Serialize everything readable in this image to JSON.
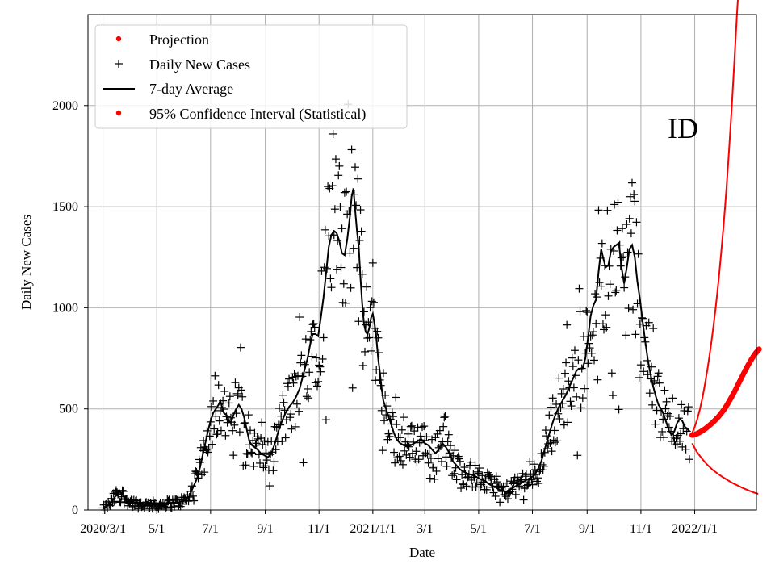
{
  "chart_data": {
    "type": "scatter",
    "title": "",
    "xlabel": "Date",
    "ylabel": "Daily New Cases",
    "x_axis": {
      "start_date": "2020-02-15",
      "end_date": "2022-02-15",
      "ticks": [
        {
          "label": "2020/3/1",
          "day": 15
        },
        {
          "label": "5/1",
          "day": 76
        },
        {
          "label": "7/1",
          "day": 137
        },
        {
          "label": "9/1",
          "day": 199
        },
        {
          "label": "11/1",
          "day": 260
        },
        {
          "label": "2021/1/1",
          "day": 321
        },
        {
          "label": "3/1",
          "day": 380
        },
        {
          "label": "5/1",
          "day": 441
        },
        {
          "label": "7/1",
          "day": 502
        },
        {
          "label": "9/1",
          "day": 564
        },
        {
          "label": "11/1",
          "day": 625
        },
        {
          "label": "2022/1/1",
          "day": 686
        }
      ],
      "xlim": [
        -2,
        756
      ]
    },
    "ylim": [
      0,
      2450
    ],
    "yticks": [
      0,
      500,
      1000,
      1500,
      2000
    ],
    "grid": true,
    "legend": {
      "position": "top-left",
      "entries": [
        {
          "label": "Projection",
          "marker": "dot",
          "color": "#ff0000"
        },
        {
          "label": "Daily New Cases",
          "marker": "plus",
          "color": "#000000"
        },
        {
          "label": "7-day Average",
          "marker": "line",
          "color": "#000000"
        },
        {
          "label": "95% Confidence Interval (Statistical)",
          "marker": "dot",
          "color": "#ff0000"
        }
      ]
    },
    "annotation": {
      "text": "ID",
      "position": "upper-right"
    },
    "series": [
      {
        "name": "7-day Average",
        "type": "line",
        "color": "#000000",
        "points": [
          [
            15,
            5
          ],
          [
            20,
            20
          ],
          [
            25,
            40
          ],
          [
            28,
            60
          ],
          [
            31,
            80
          ],
          [
            34,
            95
          ],
          [
            37,
            75
          ],
          [
            40,
            55
          ],
          [
            45,
            45
          ],
          [
            50,
            35
          ],
          [
            55,
            30
          ],
          [
            60,
            28
          ],
          [
            65,
            25
          ],
          [
            70,
            25
          ],
          [
            75,
            25
          ],
          [
            80,
            27
          ],
          [
            85,
            30
          ],
          [
            90,
            32
          ],
          [
            95,
            35
          ],
          [
            100,
            38
          ],
          [
            105,
            42
          ],
          [
            110,
            50
          ],
          [
            113,
            70
          ],
          [
            116,
            100
          ],
          [
            119,
            130
          ],
          [
            122,
            160
          ],
          [
            125,
            210
          ],
          [
            128,
            270
          ],
          [
            131,
            330
          ],
          [
            134,
            390
          ],
          [
            137,
            440
          ],
          [
            140,
            480
          ],
          [
            143,
            500
          ],
          [
            146,
            520
          ],
          [
            148,
            540
          ],
          [
            150,
            510
          ],
          [
            152,
            480
          ],
          [
            155,
            470
          ],
          [
            158,
            440
          ],
          [
            160,
            430
          ],
          [
            163,
            470
          ],
          [
            166,
            500
          ],
          [
            169,
            520
          ],
          [
            172,
            500
          ],
          [
            175,
            460
          ],
          [
            178,
            400
          ],
          [
            181,
            340
          ],
          [
            184,
            320
          ],
          [
            187,
            310
          ],
          [
            190,
            300
          ],
          [
            194,
            280
          ],
          [
            198,
            270
          ],
          [
            202,
            260
          ],
          [
            206,
            280
          ],
          [
            210,
            330
          ],
          [
            214,
            390
          ],
          [
            218,
            440
          ],
          [
            222,
            480
          ],
          [
            226,
            510
          ],
          [
            230,
            530
          ],
          [
            234,
            560
          ],
          [
            238,
            600
          ],
          [
            241,
            650
          ],
          [
            244,
            700
          ],
          [
            247,
            750
          ],
          [
            250,
            820
          ],
          [
            253,
            870
          ],
          [
            256,
            870
          ],
          [
            259,
            860
          ],
          [
            262,
            950
          ],
          [
            265,
            1050
          ],
          [
            268,
            1170
          ],
          [
            271,
            1300
          ],
          [
            274,
            1360
          ],
          [
            277,
            1380
          ],
          [
            280,
            1370
          ],
          [
            283,
            1330
          ],
          [
            286,
            1270
          ],
          [
            289,
            1260
          ],
          [
            292,
            1340
          ],
          [
            295,
            1450
          ],
          [
            297,
            1550
          ],
          [
            299,
            1590
          ],
          [
            301,
            1480
          ],
          [
            303,
            1380
          ],
          [
            305,
            1300
          ],
          [
            307,
            1150
          ],
          [
            309,
            1020
          ],
          [
            311,
            920
          ],
          [
            313,
            880
          ],
          [
            315,
            870
          ],
          [
            317,
            900
          ],
          [
            319,
            950
          ],
          [
            321,
            970
          ],
          [
            323,
            920
          ],
          [
            325,
            850
          ],
          [
            327,
            750
          ],
          [
            329,
            680
          ],
          [
            331,
            600
          ],
          [
            333,
            540
          ],
          [
            336,
            500
          ],
          [
            339,
            460
          ],
          [
            342,
            420
          ],
          [
            345,
            380
          ],
          [
            348,
            350
          ],
          [
            352,
            330
          ],
          [
            356,
            320
          ],
          [
            360,
            315
          ],
          [
            364,
            320
          ],
          [
            368,
            330
          ],
          [
            372,
            340
          ],
          [
            376,
            350
          ],
          [
            380,
            330
          ],
          [
            384,
            320
          ],
          [
            388,
            300
          ],
          [
            392,
            280
          ],
          [
            396,
            300
          ],
          [
            400,
            330
          ],
          [
            404,
            310
          ],
          [
            408,
            280
          ],
          [
            412,
            240
          ],
          [
            416,
            220
          ],
          [
            420,
            200
          ],
          [
            424,
            190
          ],
          [
            428,
            180
          ],
          [
            432,
            175
          ],
          [
            436,
            170
          ],
          [
            440,
            160
          ],
          [
            444,
            150
          ],
          [
            448,
            145
          ],
          [
            452,
            130
          ],
          [
            456,
            120
          ],
          [
            460,
            115
          ],
          [
            464,
            100
          ],
          [
            468,
            95
          ],
          [
            472,
            90
          ],
          [
            476,
            100
          ],
          [
            480,
            110
          ],
          [
            484,
            120
          ],
          [
            488,
            130
          ],
          [
            492,
            140
          ],
          [
            496,
            150
          ],
          [
            500,
            160
          ],
          [
            504,
            170
          ],
          [
            508,
            200
          ],
          [
            512,
            240
          ],
          [
            516,
            300
          ],
          [
            520,
            360
          ],
          [
            524,
            420
          ],
          [
            528,
            470
          ],
          [
            532,
            510
          ],
          [
            536,
            540
          ],
          [
            540,
            570
          ],
          [
            544,
            610
          ],
          [
            548,
            650
          ],
          [
            552,
            690
          ],
          [
            556,
            700
          ],
          [
            559,
            700
          ],
          [
            562,
            750
          ],
          [
            565,
            850
          ],
          [
            568,
            960
          ],
          [
            571,
            1010
          ],
          [
            574,
            1040
          ],
          [
            577,
            1180
          ],
          [
            580,
            1290
          ],
          [
            582,
            1250
          ],
          [
            585,
            1200
          ],
          [
            588,
            1210
          ],
          [
            591,
            1280
          ],
          [
            594,
            1300
          ],
          [
            597,
            1310
          ],
          [
            600,
            1320
          ],
          [
            603,
            1200
          ],
          [
            606,
            1120
          ],
          [
            609,
            1200
          ],
          [
            612,
            1290
          ],
          [
            615,
            1310
          ],
          [
            618,
            1250
          ],
          [
            621,
            1130
          ],
          [
            624,
            1040
          ],
          [
            627,
            930
          ],
          [
            630,
            830
          ],
          [
            633,
            740
          ],
          [
            636,
            670
          ],
          [
            639,
            610
          ],
          [
            642,
            560
          ],
          [
            645,
            520
          ],
          [
            648,
            500
          ],
          [
            651,
            470
          ],
          [
            654,
            430
          ],
          [
            657,
            390
          ],
          [
            660,
            370
          ],
          [
            663,
            390
          ],
          [
            666,
            430
          ],
          [
            669,
            450
          ],
          [
            672,
            440
          ],
          [
            675,
            410
          ],
          [
            678,
            400
          ],
          [
            680,
            390
          ]
        ]
      },
      {
        "name": "Projection",
        "type": "dots",
        "color": "#ff0000",
        "points": [
          [
            683,
            370
          ],
          [
            686,
            372
          ],
          [
            689,
            378
          ],
          [
            692,
            385
          ],
          [
            695,
            393
          ],
          [
            698,
            402
          ],
          [
            701,
            412
          ],
          [
            704,
            423
          ],
          [
            707,
            435
          ],
          [
            710,
            448
          ],
          [
            713,
            462
          ],
          [
            716,
            478
          ],
          [
            719,
            495
          ],
          [
            722,
            515
          ],
          [
            725,
            537
          ],
          [
            728,
            560
          ],
          [
            731,
            584
          ],
          [
            734,
            610
          ],
          [
            737,
            636
          ],
          [
            740,
            662
          ],
          [
            743,
            688
          ],
          [
            746,
            712
          ],
          [
            749,
            735
          ],
          [
            752,
            756
          ],
          [
            755,
            775
          ],
          [
            757,
            785
          ],
          [
            759,
            795
          ]
        ]
      },
      {
        "name": "95% CI Upper",
        "type": "line",
        "color": "#ff0000",
        "points": [
          [
            683,
            380
          ],
          [
            686,
            410
          ],
          [
            689,
            450
          ],
          [
            692,
            500
          ],
          [
            695,
            560
          ],
          [
            698,
            630
          ],
          [
            701,
            710
          ],
          [
            704,
            800
          ],
          [
            707,
            900
          ],
          [
            710,
            1010
          ],
          [
            713,
            1130
          ],
          [
            716,
            1270
          ],
          [
            719,
            1420
          ],
          [
            722,
            1590
          ],
          [
            725,
            1780
          ],
          [
            728,
            1990
          ],
          [
            731,
            2220
          ],
          [
            734,
            2460
          ],
          [
            736,
            2600
          ]
        ]
      },
      {
        "name": "95% CI Lower",
        "type": "line",
        "color": "#ff0000",
        "points": [
          [
            683,
            330
          ],
          [
            688,
            290
          ],
          [
            694,
            255
          ],
          [
            700,
            225
          ],
          [
            706,
            200
          ],
          [
            712,
            180
          ],
          [
            718,
            162
          ],
          [
            724,
            146
          ],
          [
            730,
            131
          ],
          [
            736,
            118
          ],
          [
            742,
            106
          ],
          [
            748,
            95
          ],
          [
            754,
            85
          ],
          [
            758,
            80
          ]
        ]
      }
    ],
    "daily_cases_clusters": [
      [
        15,
        150,
        5,
        40
      ],
      [
        150,
        310,
        25,
        160
      ],
      [
        235,
        330,
        60,
        130
      ],
      [
        330,
        505,
        15,
        170
      ],
      [
        505,
        640,
        40,
        190
      ],
      [
        640,
        680,
        25,
        150
      ]
    ]
  }
}
